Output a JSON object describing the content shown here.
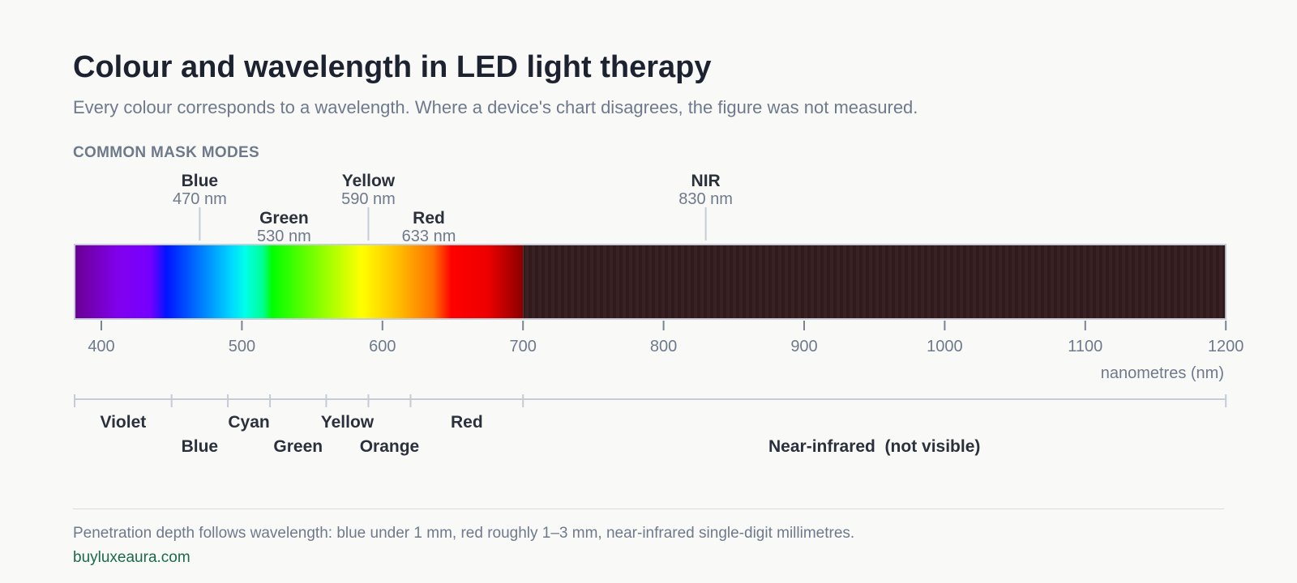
{
  "title": "Colour and wavelength in LED light therapy",
  "subtitle": "Every colour corresponds to a wavelength. Where a device's chart disagrees, the figure was not measured.",
  "section_label": "COMMON MASK MODES",
  "axis_label": "nanometres (nm)",
  "footnote": "Penetration depth follows wavelength: blue under 1 mm, red roughly 1–3 mm, near-infrared single-digit millimetres.",
  "site": "buyluxeaura.com",
  "chart_data": {
    "type": "spectrum",
    "xlim": [
      381,
      1200
    ],
    "ticks": [
      400,
      500,
      600,
      700,
      800,
      900,
      1000,
      1100,
      1200
    ],
    "visible_end": 700,
    "mask_modes": [
      {
        "name": "Blue",
        "wavelength": 470,
        "label": "470 nm",
        "row": 1
      },
      {
        "name": "Green",
        "wavelength": 530,
        "label": "530 nm",
        "row": 2
      },
      {
        "name": "Yellow",
        "wavelength": 590,
        "label": "590 nm",
        "row": 1
      },
      {
        "name": "Red",
        "wavelength": 633,
        "label": "633 nm",
        "row": 2
      },
      {
        "name": "NIR",
        "wavelength": 830,
        "label": "830 nm",
        "row": 1
      }
    ],
    "bands": [
      {
        "name": "Violet",
        "start": 381,
        "end": 450,
        "row": 1
      },
      {
        "name": "Blue",
        "start": 450,
        "end": 490,
        "row": 2
      },
      {
        "name": "Cyan",
        "start": 490,
        "end": 520,
        "row": 1
      },
      {
        "name": "Green",
        "start": 520,
        "end": 560,
        "row": 2
      },
      {
        "name": "Yellow",
        "start": 560,
        "end": 590,
        "row": 1
      },
      {
        "name": "Orange",
        "start": 590,
        "end": 620,
        "row": 2
      },
      {
        "name": "Red",
        "start": 620,
        "end": 700,
        "row": 1
      },
      {
        "name": "Near-infrared  (not visible)",
        "start": 700,
        "end": 1200,
        "row": 2
      }
    ],
    "colors": {
      "infrared_fill": "#301a1c",
      "infrared_stripe": "#3b2224",
      "text": "#2a303c",
      "muted": "#6e7a8c",
      "line": "#c4ccd6"
    }
  }
}
